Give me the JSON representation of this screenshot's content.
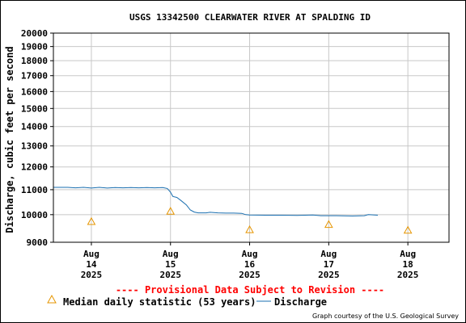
{
  "chart_data": {
    "type": "line",
    "title": "USGS 13342500 CLEARWATER RIVER AT SPALDING ID",
    "ylabel": "Discharge, cubic feet per second",
    "xlabel": "",
    "ylim": [
      9000,
      20000
    ],
    "y_scale": "log",
    "grid": true,
    "yticks": [
      9000,
      10000,
      11000,
      12000,
      13000,
      14000,
      15000,
      16000,
      17000,
      18000,
      19000,
      20000
    ],
    "ytick_labels": [
      "9000",
      "10000",
      "11000",
      "12000",
      "13000",
      "14000",
      "15000",
      "16000",
      "17000",
      "18000",
      "19000",
      "20000"
    ],
    "x_range_days": [
      13.52,
      18.52
    ],
    "xticks": [
      {
        "day": 14,
        "line1": "Aug",
        "line2": "14",
        "line3": "2025"
      },
      {
        "day": 15,
        "line1": "Aug",
        "line2": "15",
        "line3": "2025"
      },
      {
        "day": 16,
        "line1": "Aug",
        "line2": "16",
        "line3": "2025"
      },
      {
        "day": 17,
        "line1": "Aug",
        "line2": "17",
        "line3": "2025"
      },
      {
        "day": 18,
        "line1": "Aug",
        "line2": "18",
        "line3": "2025"
      }
    ],
    "series": [
      {
        "name": "Discharge",
        "style": "line",
        "color": "#1a6fb0",
        "points": [
          [
            13.52,
            11100
          ],
          [
            13.6,
            11100
          ],
          [
            13.7,
            11100
          ],
          [
            13.8,
            11080
          ],
          [
            13.9,
            11100
          ],
          [
            14.0,
            11070
          ],
          [
            14.1,
            11100
          ],
          [
            14.2,
            11070
          ],
          [
            14.3,
            11090
          ],
          [
            14.4,
            11080
          ],
          [
            14.5,
            11090
          ],
          [
            14.6,
            11080
          ],
          [
            14.7,
            11090
          ],
          [
            14.8,
            11080
          ],
          [
            14.9,
            11090
          ],
          [
            14.96,
            11050
          ],
          [
            15.0,
            10900
          ],
          [
            15.03,
            10720
          ],
          [
            15.08,
            10680
          ],
          [
            15.13,
            10560
          ],
          [
            15.2,
            10380
          ],
          [
            15.25,
            10180
          ],
          [
            15.3,
            10100
          ],
          [
            15.35,
            10070
          ],
          [
            15.45,
            10070
          ],
          [
            15.5,
            10090
          ],
          [
            15.6,
            10070
          ],
          [
            15.7,
            10060
          ],
          [
            15.8,
            10060
          ],
          [
            15.9,
            10050
          ],
          [
            15.95,
            10000
          ],
          [
            16.0,
            9990
          ],
          [
            16.2,
            9980
          ],
          [
            16.4,
            9980
          ],
          [
            16.6,
            9970
          ],
          [
            16.8,
            9990
          ],
          [
            16.9,
            9960
          ],
          [
            17.1,
            9960
          ],
          [
            17.3,
            9950
          ],
          [
            17.45,
            9960
          ],
          [
            17.5,
            10000
          ],
          [
            17.62,
            9980
          ]
        ]
      },
      {
        "name": "Median daily statistic (53 years)",
        "style": "marker",
        "marker": "triangle",
        "color": "#e69500",
        "points": [
          [
            14.0,
            9740
          ],
          [
            15.0,
            10130
          ],
          [
            16.0,
            9440
          ],
          [
            17.0,
            9630
          ],
          [
            18.0,
            9420
          ]
        ]
      }
    ],
    "legend": [
      {
        "marker": "triangle",
        "color": "#e69500",
        "label": "Median daily statistic (53 years)"
      },
      {
        "marker": "line",
        "color": "#1a6fb0",
        "label": "Discharge"
      }
    ],
    "legend_placement": "bottom"
  },
  "notice": "---- Provisional Data Subject to Revision ----",
  "credit": "Graph courtesy of the U.S. Geological Survey"
}
